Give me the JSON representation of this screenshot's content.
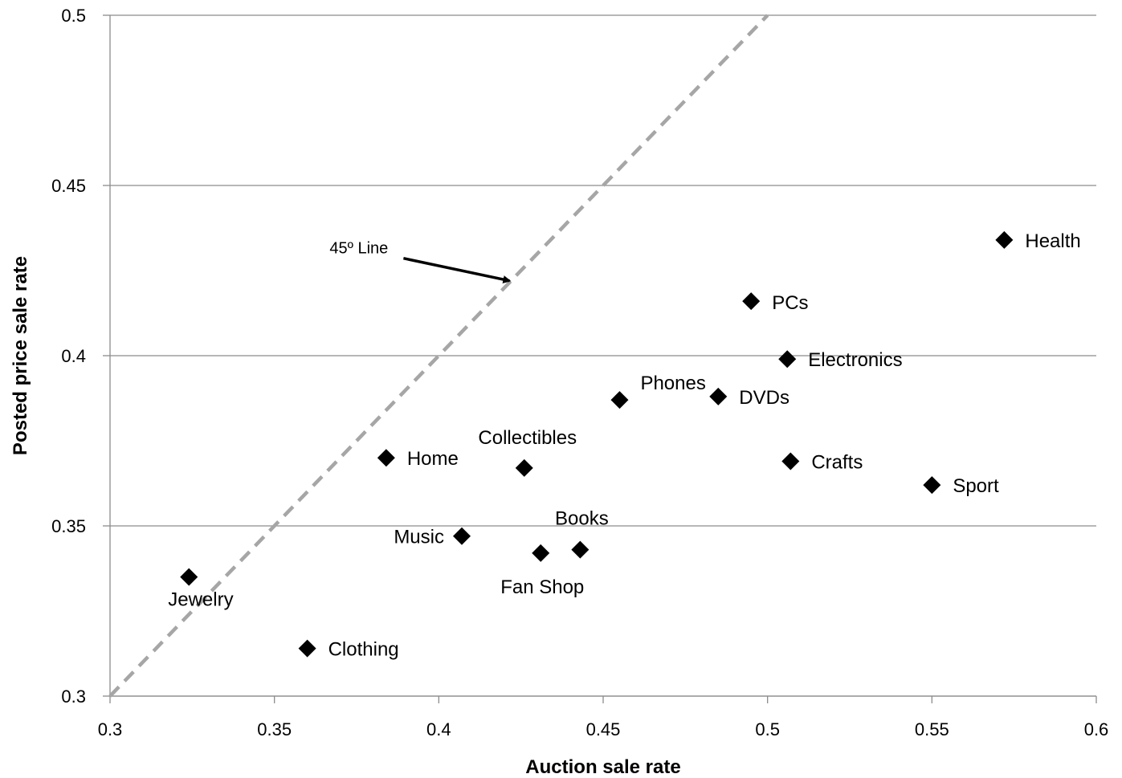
{
  "chart_data": {
    "type": "scatter",
    "title": "",
    "xlabel": "Auction  sale rate",
    "ylabel": "Posted price sale rate",
    "xlim": [
      0.3,
      0.6
    ],
    "ylim": [
      0.3,
      0.5
    ],
    "x_ticks": [
      0.3,
      0.35,
      0.4,
      0.45,
      0.5,
      0.55,
      0.6
    ],
    "x_tick_labels": [
      "0.3",
      "0.35",
      "0.4",
      "0.45",
      "0.5",
      "0.55",
      "0.6"
    ],
    "y_ticks": [
      0.3,
      0.35,
      0.4,
      0.45,
      0.5
    ],
    "y_tick_labels": [
      "0.3",
      "0.35",
      "0.4",
      "0.45",
      "0.5"
    ],
    "grid": "horizontal",
    "marker": "diamond",
    "marker_color": "#000000",
    "reference_line": {
      "label": "45º Line",
      "style": "dashed",
      "color": "#a6a6a6",
      "from": [
        0.3,
        0.3
      ],
      "to": [
        0.5,
        0.5
      ]
    },
    "points": [
      {
        "label": "Jewelry",
        "x": 0.324,
        "y": 0.335
      },
      {
        "label": "Clothing",
        "x": 0.36,
        "y": 0.314
      },
      {
        "label": "Home",
        "x": 0.384,
        "y": 0.37
      },
      {
        "label": "Music",
        "x": 0.407,
        "y": 0.347
      },
      {
        "label": "Collectibles",
        "x": 0.426,
        "y": 0.367
      },
      {
        "label": "Fan Shop",
        "x": 0.431,
        "y": 0.342
      },
      {
        "label": "Books",
        "x": 0.443,
        "y": 0.343
      },
      {
        "label": "Phones",
        "x": 0.455,
        "y": 0.387
      },
      {
        "label": "DVDs",
        "x": 0.485,
        "y": 0.388
      },
      {
        "label": "PCs",
        "x": 0.495,
        "y": 0.416
      },
      {
        "label": "Electronics",
        "x": 0.506,
        "y": 0.399
      },
      {
        "label": "Crafts",
        "x": 0.507,
        "y": 0.369
      },
      {
        "label": "Sport",
        "x": 0.55,
        "y": 0.362
      },
      {
        "label": "Health",
        "x": 0.572,
        "y": 0.434
      }
    ]
  }
}
